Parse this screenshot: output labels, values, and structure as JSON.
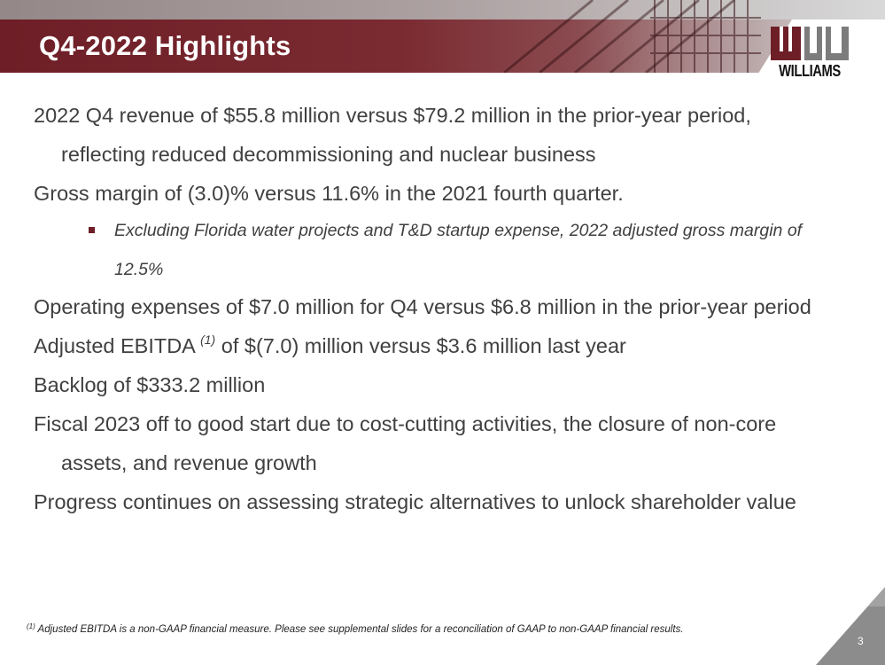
{
  "slide": {
    "title": "Q4-2022 Highlights",
    "page_number": "3"
  },
  "logo": {
    "text": "WILLIAMS"
  },
  "bullets": [
    {
      "text": "2022 Q4 revenue of $55.8 million versus $79.2 million in the prior-year period, reflecting reduced decommissioning and nuclear business"
    },
    {
      "text": "Gross margin of (3.0)% versus 11.6% in the 2021 fourth quarter."
    },
    {
      "sub_text": "Excluding Florida water projects and T&D startup expense, 2022 adjusted gross margin of 12.5%"
    },
    {
      "text": "Operating expenses of $7.0 million for Q4 versus $6.8 million in the prior-year period"
    },
    {
      "text_before": "Adjusted EBITDA ",
      "superscript": "(1)",
      "text_after": " of $(7.0) million versus $3.6 million last year"
    },
    {
      "text": "Backlog of $333.2 million"
    },
    {
      "text": "Fiscal 2023 off to good start due to cost-cutting activities, the closure of non-core assets, and revenue growth"
    },
    {
      "text": "Progress continues on assessing strategic alternatives to unlock shareholder value"
    }
  ],
  "footnote": {
    "marker": "(1)",
    "text": " Adjusted EBITDA is a non-GAAP financial measure. Please see supplemental slides for a reconciliation of GAAP to non-GAAP financial results."
  },
  "colors": {
    "brand_maroon": "#6e1e26",
    "body_text": "#404040",
    "corner_gray": "#8c8c8c"
  }
}
